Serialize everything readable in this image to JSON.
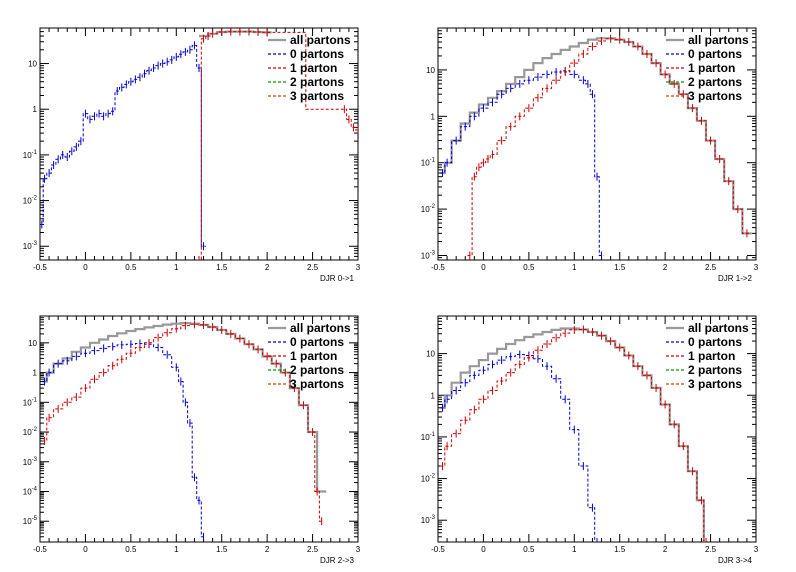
{
  "chart_data": [
    {
      "type": "line",
      "xlabel": "DJR 0->1",
      "ylabel": "",
      "xlim": [
        -0.5,
        3
      ],
      "ylim": [
        0.0005,
        60
      ],
      "log_y": true,
      "y_ticks": [
        "10^-3",
        "10^-2",
        "10^-1",
        "1",
        "10"
      ],
      "x_ticks": [
        "-0.5",
        "0",
        "0.5",
        "1",
        "1.5",
        "2",
        "2.5",
        "3"
      ],
      "legend": [
        "all partons",
        "0 partons",
        "1 parton",
        "2 partons",
        "3 partons"
      ],
      "legend_position": "top-right",
      "series": [
        {
          "name": "all partons",
          "color": "#999999",
          "x": [
            1.3,
            1.4,
            1.5,
            1.6,
            1.7,
            1.8,
            1.9,
            2.0
          ],
          "y": [
            40,
            45,
            49,
            50,
            50,
            50,
            49,
            48
          ]
        },
        {
          "name": "0 partons",
          "color": "#0000cc",
          "x": [
            -0.48,
            -0.45,
            -0.4,
            -0.35,
            -0.3,
            -0.25,
            -0.2,
            -0.15,
            -0.1,
            -0.05,
            0.0,
            0.05,
            0.1,
            0.15,
            0.2,
            0.25,
            0.3,
            0.35,
            0.4,
            0.45,
            0.5,
            0.55,
            0.6,
            0.65,
            0.7,
            0.75,
            0.8,
            0.85,
            0.9,
            0.95,
            1.0,
            1.05,
            1.1,
            1.15,
            1.2,
            1.25,
            1.3
          ],
          "y": [
            0.003,
            0.03,
            0.04,
            0.06,
            0.08,
            0.1,
            0.09,
            0.12,
            0.15,
            0.2,
            0.8,
            0.6,
            0.7,
            0.8,
            0.7,
            0.8,
            0.9,
            2.5,
            3.0,
            3.5,
            4.0,
            4.5,
            5.0,
            6.0,
            7.0,
            8.0,
            9.0,
            10.0,
            11.0,
            12.0,
            14.0,
            16.0,
            18.0,
            20.0,
            25.0,
            8.0,
            0.001
          ]
        },
        {
          "name": "1 parton",
          "color": "#cc0000",
          "x": [
            1.25,
            1.3,
            1.35,
            1.4,
            1.5,
            1.6,
            1.7,
            1.8,
            1.9,
            2.0,
            2.85,
            2.9,
            2.95,
            3.0
          ],
          "y": [
            0.0005,
            35,
            40,
            45,
            49,
            50,
            50,
            50,
            49,
            48,
            1.0,
            0.6,
            0.4,
            0.35
          ]
        }
      ]
    },
    {
      "type": "line",
      "xlabel": "DJR 1->2",
      "ylabel": "",
      "xlim": [
        -0.5,
        3
      ],
      "ylim": [
        0.0008,
        80
      ],
      "log_y": true,
      "y_ticks": [
        "10^-3",
        "10^-2",
        "10^-1",
        "1",
        "10"
      ],
      "x_ticks": [
        "-0.5",
        "0",
        "0.5",
        "1",
        "1.5",
        "2",
        "2.5",
        "3"
      ],
      "legend": [
        "all partons",
        "0 partons",
        "1 parton",
        "2 partons",
        "3 partons"
      ],
      "legend_position": "top-right",
      "series": [
        {
          "name": "all partons",
          "color": "#999999",
          "x": [
            -0.45,
            -0.4,
            -0.3,
            -0.2,
            -0.1,
            0.0,
            0.1,
            0.2,
            0.3,
            0.4,
            0.5,
            0.6,
            0.7,
            0.8,
            0.9,
            1.0,
            1.1,
            1.2,
            1.3,
            1.4,
            1.5,
            1.6,
            1.7,
            1.8,
            1.9,
            2.0,
            2.1,
            2.2,
            2.3,
            2.4,
            2.5,
            2.6,
            2.7,
            2.8,
            2.9
          ],
          "y": [
            0.06,
            0.1,
            0.3,
            0.7,
            1.2,
            1.8,
            2.5,
            3.5,
            5.0,
            7.0,
            10.0,
            14.0,
            18.0,
            22.0,
            27.0,
            32.0,
            38.0,
            45.0,
            48.0,
            48.0,
            45.0,
            40.0,
            32.0,
            22.0,
            14.0,
            8.0,
            5.0,
            3.0,
            1.5,
            0.8,
            0.3,
            0.12,
            0.04,
            0.01,
            0.003
          ]
        },
        {
          "name": "0 partons",
          "color": "#0000cc",
          "x": [
            -0.45,
            -0.4,
            -0.3,
            -0.2,
            -0.1,
            0.0,
            0.1,
            0.2,
            0.3,
            0.4,
            0.5,
            0.6,
            0.7,
            0.8,
            0.9,
            1.0,
            1.1,
            1.15,
            1.2,
            1.25,
            1.3
          ],
          "y": [
            0.06,
            0.1,
            0.3,
            0.6,
            1.0,
            1.5,
            2.0,
            3.0,
            4.0,
            5.0,
            6.0,
            7.0,
            8.0,
            9.0,
            9.5,
            8.0,
            6.0,
            5.0,
            3.0,
            0.05,
            0.001
          ]
        },
        {
          "name": "1 parton",
          "color": "#cc0000",
          "x": [
            -0.15,
            -0.1,
            -0.05,
            0.0,
            0.05,
            0.1,
            0.2,
            0.3,
            0.4,
            0.5,
            0.6,
            0.7,
            0.8,
            0.9,
            1.0,
            1.1,
            1.2,
            1.3,
            1.4,
            1.5,
            1.6,
            1.7,
            1.8,
            1.9,
            2.0,
            2.1,
            2.2,
            2.3,
            2.4,
            2.5,
            2.6,
            2.7,
            2.8,
            2.9
          ],
          "y": [
            0.001,
            0.05,
            0.08,
            0.1,
            0.12,
            0.15,
            0.3,
            0.6,
            1.0,
            1.5,
            2.5,
            4.0,
            6.0,
            9.0,
            14.0,
            22.0,
            32.0,
            42.0,
            47.0,
            45.0,
            40.0,
            32.0,
            22.0,
            14.0,
            8.0,
            5.0,
            3.0,
            1.5,
            0.8,
            0.3,
            0.12,
            0.04,
            0.01,
            0.003
          ]
        }
      ]
    },
    {
      "type": "line",
      "xlabel": "DJR 2->3",
      "ylabel": "",
      "xlim": [
        -0.5,
        3
      ],
      "ylim": [
        2e-06,
        80
      ],
      "log_y": true,
      "y_ticks": [
        "10^-5",
        "10^-4",
        "10^-3",
        "10^-2",
        "10^-1",
        "1",
        "10"
      ],
      "x_ticks": [
        "-0.5",
        "0",
        "0.5",
        "1",
        "1.5",
        "2",
        "2.5",
        "3"
      ],
      "legend": [
        "all partons",
        "0 partons",
        "1 parton",
        "2 partons",
        "3 partons"
      ],
      "legend_position": "top-right",
      "series": [
        {
          "name": "all partons",
          "color": "#999999",
          "x": [
            -0.45,
            -0.4,
            -0.3,
            -0.2,
            -0.1,
            0.0,
            0.1,
            0.2,
            0.3,
            0.4,
            0.5,
            0.6,
            0.7,
            0.8,
            0.9,
            1.0,
            1.1,
            1.2,
            1.3,
            1.4,
            1.5,
            1.6,
            1.7,
            1.8,
            1.9,
            2.0,
            2.1,
            2.2,
            2.3,
            2.4,
            2.5,
            2.6
          ],
          "y": [
            0.5,
            1.0,
            2.0,
            3.0,
            5.0,
            7.0,
            10.0,
            13.0,
            17.0,
            21.0,
            25.0,
            29.0,
            33.0,
            37.0,
            41.0,
            44.0,
            46.0,
            44.0,
            40.0,
            34.0,
            27.0,
            20.0,
            14.0,
            9.0,
            6.0,
            3.5,
            2.0,
            1.0,
            0.3,
            0.08,
            0.01,
            0.0001
          ]
        },
        {
          "name": "0 partons",
          "color": "#0000cc",
          "x": [
            -0.45,
            -0.4,
            -0.3,
            -0.2,
            -0.1,
            0.0,
            0.1,
            0.2,
            0.3,
            0.4,
            0.5,
            0.6,
            0.7,
            0.8,
            0.9,
            1.0,
            1.05,
            1.1,
            1.15,
            1.2,
            1.25,
            1.3
          ],
          "y": [
            0.5,
            1.0,
            2.0,
            2.5,
            3.5,
            4.5,
            5.5,
            6.5,
            7.5,
            8.5,
            9.0,
            9.5,
            9.0,
            7.0,
            4.0,
            1.5,
            0.5,
            0.1,
            0.02,
            0.0003,
            5e-05,
            3e-06
          ]
        },
        {
          "name": "1 parton",
          "color": "#cc0000",
          "x": [
            -0.45,
            -0.4,
            -0.3,
            -0.2,
            -0.1,
            0.0,
            0.1,
            0.2,
            0.3,
            0.4,
            0.5,
            0.6,
            0.7,
            0.8,
            0.9,
            1.0,
            1.1,
            1.2,
            1.3,
            1.4,
            1.5,
            1.6,
            1.7,
            1.8,
            1.9,
            2.0,
            2.1,
            2.2,
            2.3,
            2.4,
            2.5,
            2.55,
            2.6
          ],
          "y": [
            0.005,
            0.03,
            0.06,
            0.1,
            0.15,
            0.3,
            0.6,
            1.0,
            1.7,
            2.8,
            4.5,
            7.0,
            10.0,
            15.0,
            22.0,
            30.0,
            38.0,
            42.0,
            40.0,
            34.0,
            27.0,
            20.0,
            14.0,
            9.0,
            6.0,
            3.5,
            2.0,
            1.0,
            0.3,
            0.08,
            0.01,
            0.0001,
            1e-05
          ]
        }
      ]
    },
    {
      "type": "line",
      "xlabel": "DJR 3->4",
      "ylabel": "",
      "xlim": [
        -0.5,
        3
      ],
      "ylim": [
        0.0003,
        80
      ],
      "log_y": true,
      "y_ticks": [
        "10^-3",
        "10^-2",
        "10^-1",
        "1",
        "10"
      ],
      "x_ticks": [
        "-0.5",
        "0",
        "0.5",
        "1",
        "1.5",
        "2",
        "2.5",
        "3"
      ],
      "legend": [
        "all partons",
        "0 partons",
        "1 parton",
        "2 partons",
        "3 partons"
      ],
      "legend_position": "top-right",
      "series": [
        {
          "name": "all partons",
          "color": "#999999",
          "x": [
            -0.45,
            -0.4,
            -0.3,
            -0.2,
            -0.1,
            0.0,
            0.1,
            0.2,
            0.3,
            0.4,
            0.5,
            0.6,
            0.7,
            0.8,
            0.9,
            1.0,
            1.1,
            1.2,
            1.3,
            1.4,
            1.5,
            1.6,
            1.7,
            1.8,
            1.9,
            2.0,
            2.1,
            2.2,
            2.3,
            2.4,
            2.45
          ],
          "y": [
            0.5,
            1.0,
            2.0,
            3.5,
            5.0,
            7.0,
            10.0,
            13.0,
            17.0,
            21.0,
            25.0,
            29.0,
            33.0,
            37.0,
            40.0,
            40.0,
            38.0,
            33.0,
            27.0,
            20.0,
            14.0,
            9.0,
            5.0,
            3.0,
            1.5,
            0.6,
            0.2,
            0.06,
            0.015,
            0.003,
            0.0003
          ]
        },
        {
          "name": "0 partons",
          "color": "#0000cc",
          "x": [
            -0.45,
            -0.4,
            -0.3,
            -0.2,
            -0.1,
            0.0,
            0.1,
            0.2,
            0.3,
            0.4,
            0.5,
            0.6,
            0.7,
            0.8,
            0.9,
            1.0,
            1.1,
            1.2,
            1.25
          ],
          "y": [
            0.5,
            0.8,
            1.3,
            2.0,
            3.0,
            4.0,
            5.5,
            7.0,
            8.5,
            9.5,
            9.0,
            7.5,
            5.0,
            2.5,
            0.8,
            0.15,
            0.02,
            0.002,
            0.0003
          ]
        },
        {
          "name": "1 parton",
          "color": "#cc0000",
          "x": [
            -0.45,
            -0.4,
            -0.3,
            -0.2,
            -0.1,
            0.0,
            0.1,
            0.2,
            0.3,
            0.4,
            0.5,
            0.6,
            0.7,
            0.8,
            0.9,
            1.0,
            1.1,
            1.2,
            1.3,
            1.4,
            1.5,
            1.6,
            1.7,
            1.8,
            1.9,
            2.0,
            2.1,
            2.2,
            2.3,
            2.4,
            2.45
          ],
          "y": [
            0.02,
            0.06,
            0.12,
            0.25,
            0.45,
            0.8,
            1.3,
            2.2,
            3.5,
            5.5,
            8.0,
            12.0,
            17.0,
            24.0,
            31.0,
            37.0,
            38.0,
            33.0,
            27.0,
            20.0,
            14.0,
            9.0,
            5.0,
            3.0,
            1.5,
            0.6,
            0.2,
            0.06,
            0.015,
            0.003,
            0.0003
          ]
        }
      ]
    }
  ]
}
